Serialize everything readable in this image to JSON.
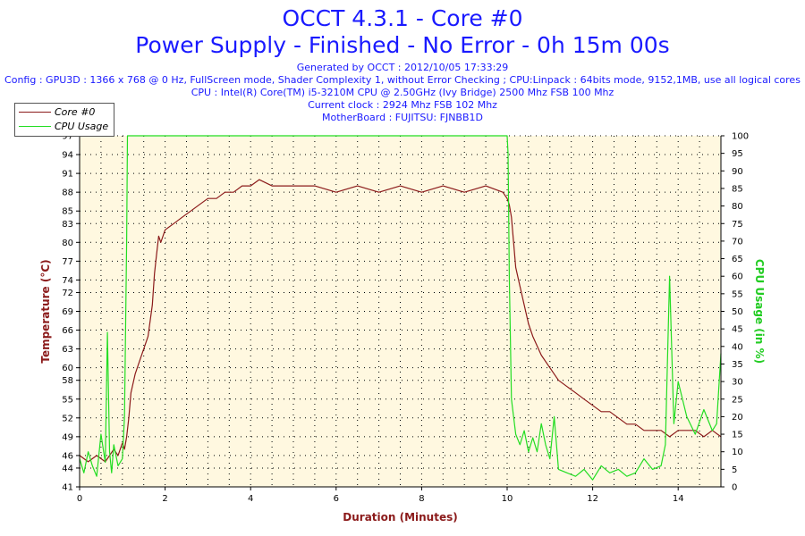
{
  "header": {
    "title_line1": "OCCT 4.3.1 - Core #0",
    "title_line2": "Power Supply - Finished - No Error - 0h 15m 00s",
    "generated": "Generated by OCCT : 2012/10/05 17:33:29",
    "config": "Config : GPU3D : 1366 x 768 @ 0 Hz, FullScreen mode, Shader Complexity 1, without Error Checking ; CPU:Linpack : 64bits mode, 9152,1MB, use all logical cores",
    "cpu": "CPU : Intel(R) Core(TM) i5-3210M CPU @ 2.50GHz (Ivy Bridge) 2500 Mhz FSB 100 Mhz",
    "clock": "Current clock : 2924 Mhz FSB 102 Mhz",
    "motherboard": "MotherBoard : FUJITSU: FJNBB1D"
  },
  "colors": {
    "temperature": "#8b1a1a",
    "cpu_usage": "#22dd22",
    "plot_bg": "#fff8e0",
    "title": "#1a1aff",
    "axis_label": "#8b1a1a",
    "y2_label": "#22cc22"
  },
  "chart_data": {
    "type": "line",
    "xlabel": "Duration (Minutes)",
    "ylabel": "Temperature (°C)",
    "y2label": "CPU Usage (in %)",
    "xlim": [
      0,
      15
    ],
    "ylim": [
      41,
      97
    ],
    "y2lim": [
      0,
      100
    ],
    "x_ticks": [
      0,
      2,
      4,
      6,
      8,
      10,
      12,
      14
    ],
    "y_ticks": [
      41,
      44,
      46,
      49,
      52,
      55,
      58,
      60,
      63,
      66,
      69,
      72,
      74,
      77,
      80,
      83,
      85,
      88,
      91,
      94,
      97
    ],
    "y2_ticks": [
      0,
      5,
      10,
      15,
      20,
      25,
      30,
      35,
      40,
      45,
      50,
      55,
      60,
      65,
      70,
      75,
      80,
      85,
      90,
      95,
      100
    ],
    "grid": true,
    "legend": "top-left",
    "series": [
      {
        "name": "Core #0",
        "axis": "left",
        "x": [
          0,
          0.2,
          0.4,
          0.6,
          0.7,
          0.8,
          0.9,
          1.0,
          1.05,
          1.1,
          1.15,
          1.2,
          1.3,
          1.4,
          1.5,
          1.6,
          1.7,
          1.75,
          1.8,
          1.85,
          1.9,
          2.0,
          2.2,
          2.4,
          2.6,
          2.8,
          3.0,
          3.2,
          3.4,
          3.6,
          3.8,
          4.0,
          4.2,
          4.5,
          5.0,
          5.5,
          6.0,
          6.5,
          7.0,
          7.5,
          8.0,
          8.5,
          9.0,
          9.5,
          9.9,
          10.0,
          10.05,
          10.1,
          10.15,
          10.2,
          10.3,
          10.4,
          10.5,
          10.6,
          10.8,
          11.0,
          11.2,
          11.4,
          11.6,
          11.8,
          12.0,
          12.2,
          12.4,
          12.6,
          12.8,
          13.0,
          13.2,
          13.4,
          13.6,
          13.8,
          14.0,
          14.2,
          14.4,
          14.6,
          14.8,
          15.0
        ],
        "y": [
          46,
          45,
          46,
          45,
          46,
          47,
          46,
          48,
          47,
          49,
          52,
          56,
          59,
          61,
          63,
          65,
          70,
          75,
          78,
          81,
          80,
          82,
          83,
          84,
          85,
          86,
          87,
          87,
          88,
          88,
          89,
          89,
          90,
          89,
          89,
          89,
          88,
          89,
          88,
          89,
          88,
          89,
          88,
          89,
          88,
          87,
          86,
          84,
          80,
          76,
          73,
          70,
          67,
          65,
          62,
          60,
          58,
          57,
          56,
          55,
          54,
          53,
          53,
          52,
          51,
          51,
          50,
          50,
          50,
          49,
          50,
          50,
          50,
          49,
          50,
          49
        ]
      },
      {
        "name": "CPU Usage",
        "axis": "right",
        "x": [
          0,
          0.1,
          0.2,
          0.3,
          0.4,
          0.5,
          0.6,
          0.65,
          0.7,
          0.75,
          0.8,
          0.9,
          1.0,
          1.05,
          1.1,
          1.12,
          1.15,
          1.2,
          10.0,
          10.02,
          10.05,
          10.1,
          10.15,
          10.2,
          10.3,
          10.4,
          10.5,
          10.6,
          10.7,
          10.8,
          10.9,
          11.0,
          11.1,
          11.2,
          11.4,
          11.6,
          11.8,
          12.0,
          12.2,
          12.4,
          12.6,
          12.8,
          13.0,
          13.2,
          13.4,
          13.6,
          13.7,
          13.8,
          13.9,
          14.0,
          14.2,
          14.4,
          14.6,
          14.8,
          14.9,
          15.0
        ],
        "y": [
          8,
          4,
          10,
          6,
          3,
          15,
          7,
          44,
          10,
          4,
          12,
          6,
          8,
          20,
          70,
          100,
          100,
          100,
          100,
          95,
          60,
          25,
          20,
          15,
          12,
          16,
          10,
          14,
          10,
          18,
          12,
          8,
          20,
          5,
          4,
          3,
          5,
          2,
          6,
          4,
          5,
          3,
          4,
          8,
          5,
          6,
          12,
          60,
          18,
          30,
          20,
          15,
          22,
          16,
          18,
          38
        ]
      }
    ]
  }
}
